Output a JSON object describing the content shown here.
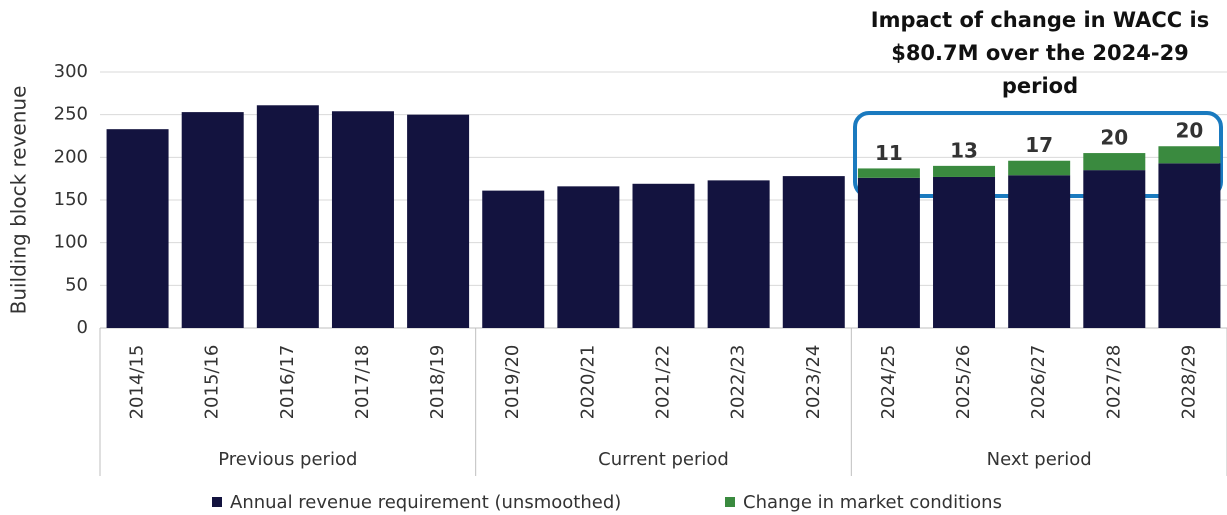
{
  "chart_data": {
    "type": "stacked_bar",
    "annotation": "Impact of change in WACC is $80.7M over the 2024-29 period",
    "y_label": "Building block revenue",
    "groups": [
      {
        "name": "Previous period",
        "categories": [
          "2014/15",
          "2015/16",
          "2016/17",
          "2017/18",
          "2018/19"
        ]
      },
      {
        "name": "Current period",
        "categories": [
          "2019/20",
          "2020/21",
          "2021/22",
          "2022/23",
          "2023/24"
        ]
      },
      {
        "name": "Next period",
        "categories": [
          "2024/25",
          "2025/26",
          "2026/27",
          "2027/28",
          "2028/29"
        ]
      }
    ],
    "series": [
      {
        "name": "Annual revenue requirement (unsmoothed)",
        "color": "#13133f",
        "values": [
          233,
          253,
          261,
          254,
          250,
          161,
          166,
          169,
          173,
          178,
          176,
          177,
          179,
          185,
          193
        ]
      },
      {
        "name": "Change in market conditions",
        "color": "#3a8a3f",
        "values": [
          null,
          null,
          null,
          null,
          null,
          null,
          null,
          null,
          null,
          null,
          11,
          13,
          17,
          20,
          20
        ]
      }
    ],
    "ylim": [
      0,
      300
    ],
    "yticks": [
      0,
      50,
      100,
      150,
      200,
      250,
      300
    ],
    "grid": true
  }
}
